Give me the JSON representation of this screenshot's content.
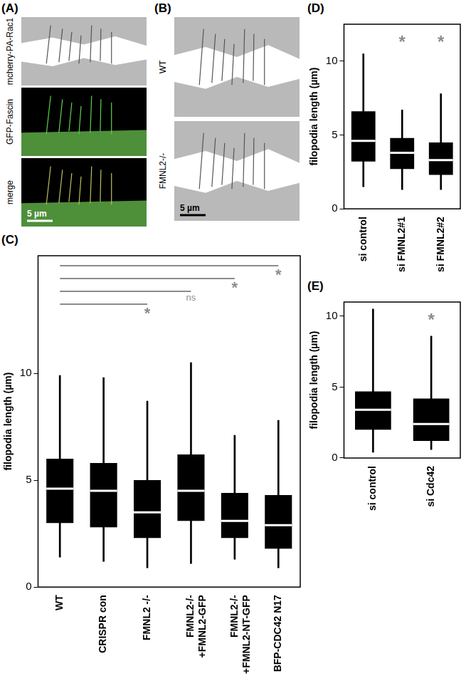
{
  "image_panels": [
    {
      "panel": "(A)",
      "rows": [
        "mcherry-PA-Rac1",
        "GFP-Fascin",
        "merge"
      ],
      "scale_bar": "5 µm"
    },
    {
      "panel": "(B)",
      "rows": [
        "WT",
        "FMNL2-/-"
      ],
      "scale_bar": "5 µm"
    }
  ],
  "chart_data": [
    {
      "panel": "(C)",
      "type": "box",
      "y_label": "filopodia length (µm)",
      "categories": [
        "WT",
        "CRISPR con",
        "FMNL2 -/-",
        "FMNL2-/-\n+FMNL2-GFP",
        "FMNL2-/-\n+FMNL2-NT-GFP",
        "BFP-CDC42 N17"
      ],
      "values": [
        {
          "min": 1.4,
          "q1": 3.0,
          "median": 4.6,
          "q3": 6.0,
          "max": 9.9
        },
        {
          "min": 1.2,
          "q1": 2.8,
          "median": 4.5,
          "q3": 5.8,
          "max": 9.8
        },
        {
          "min": 0.9,
          "q1": 2.3,
          "median": 3.5,
          "q3": 5.0,
          "max": 8.7
        },
        {
          "min": 1.1,
          "q1": 3.1,
          "median": 4.5,
          "q3": 6.2,
          "max": 10.5
        },
        {
          "min": 1.3,
          "q1": 2.3,
          "median": 3.1,
          "q3": 4.4,
          "max": 7.1
        },
        {
          "min": 0.9,
          "q1": 1.8,
          "median": 2.9,
          "q3": 4.3,
          "max": 7.8
        }
      ],
      "color": "#000000",
      "ylim": [
        0,
        15.5
      ],
      "yticks": [
        0,
        5,
        10
      ],
      "grid": false,
      "comparisons": [
        {
          "from": "WT",
          "to": "FMNL2 -/-",
          "label": "*"
        },
        {
          "from": "WT",
          "to": "FMNL2-/-\n+FMNL2-GFP",
          "label": "ns"
        },
        {
          "from": "WT",
          "to": "FMNL2-/-\n+FMNL2-NT-GFP",
          "label": "*"
        },
        {
          "from": "WT",
          "to": "BFP-CDC42 N17",
          "label": "*"
        }
      ]
    },
    {
      "panel": "(D)",
      "type": "box",
      "y_label": "filopodia length (µm)",
      "categories": [
        "si control",
        "si FMNL2#1",
        "si FMNL2#2"
      ],
      "values": [
        {
          "min": 1.5,
          "q1": 3.2,
          "median": 4.6,
          "q3": 6.6,
          "max": 10.5
        },
        {
          "min": 1.3,
          "q1": 2.7,
          "median": 3.8,
          "q3": 4.8,
          "max": 6.7
        },
        {
          "min": 1.3,
          "q1": 2.3,
          "median": 3.3,
          "q3": 4.5,
          "max": 7.8
        }
      ],
      "color": "#000000",
      "ylim": [
        0,
        12.5
      ],
      "yticks": [
        0,
        5,
        10
      ],
      "grid": false,
      "marks": [
        {
          "category": "si FMNL2#1",
          "text": "*"
        },
        {
          "category": "si FMNL2#2",
          "text": "*"
        }
      ]
    },
    {
      "panel": "(E)",
      "type": "box",
      "y_label": "filopodia length (µm)",
      "categories": [
        "si control",
        "si Cdc42"
      ],
      "values": [
        {
          "min": 0.4,
          "q1": 2.0,
          "median": 3.4,
          "q3": 4.7,
          "max": 10.5
        },
        {
          "min": 0.6,
          "q1": 1.2,
          "median": 2.4,
          "q3": 4.2,
          "max": 8.6
        }
      ],
      "color": "#000000",
      "ylim": [
        0,
        11
      ],
      "yticks": [
        0,
        5,
        10
      ],
      "grid": false,
      "marks": [
        {
          "category": "si Cdc42",
          "text": "*"
        }
      ]
    }
  ]
}
